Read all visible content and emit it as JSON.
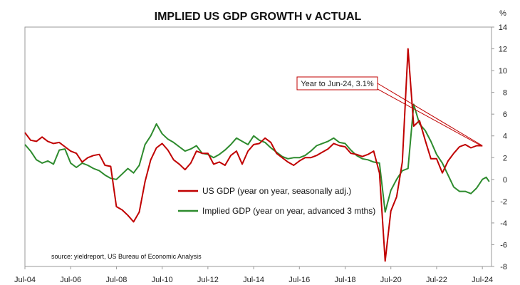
{
  "chart_data": {
    "type": "line",
    "title": "IMPLIED US GDP GROWTH v ACTUAL",
    "ylabel": "%",
    "ylim": [
      -8,
      14
    ],
    "yticks": [
      -8,
      -6,
      -4,
      -2,
      0,
      2,
      4,
      6,
      8,
      10,
      12,
      14
    ],
    "xlim": [
      2004.5,
      2024.9
    ],
    "xticks": [
      {
        "label": "Jul-04",
        "x": 2004.5
      },
      {
        "label": "Jul-06",
        "x": 2006.5
      },
      {
        "label": "Jul-08",
        "x": 2008.5
      },
      {
        "label": "Jul-10",
        "x": 2010.5
      },
      {
        "label": "Jul-12",
        "x": 2012.5
      },
      {
        "label": "Jul-14",
        "x": 2014.5
      },
      {
        "label": "Jul-16",
        "x": 2016.5
      },
      {
        "label": "Jul-18",
        "x": 2018.5
      },
      {
        "label": "Jul-20",
        "x": 2020.5
      },
      {
        "label": "Jul-22",
        "x": 2022.5
      },
      {
        "label": "Jul-24",
        "x": 2024.5
      }
    ],
    "legend_position": "bottom-center",
    "grid": false,
    "series": [
      {
        "name": "US GDP (year on year, seasonally adj.)",
        "color": "#c00000",
        "points": [
          [
            2004.5,
            4.3
          ],
          [
            2004.75,
            3.6
          ],
          [
            2005.0,
            3.5
          ],
          [
            2005.25,
            3.9
          ],
          [
            2005.5,
            3.5
          ],
          [
            2005.75,
            3.3
          ],
          [
            2006.0,
            3.4
          ],
          [
            2006.25,
            3.0
          ],
          [
            2006.5,
            2.6
          ],
          [
            2006.75,
            2.4
          ],
          [
            2007.0,
            1.6
          ],
          [
            2007.25,
            2.0
          ],
          [
            2007.5,
            2.2
          ],
          [
            2007.75,
            2.3
          ],
          [
            2008.0,
            1.3
          ],
          [
            2008.25,
            1.2
          ],
          [
            2008.5,
            -2.5
          ],
          [
            2008.75,
            -2.8
          ],
          [
            2009.0,
            -3.3
          ],
          [
            2009.25,
            -3.9
          ],
          [
            2009.5,
            -3.0
          ],
          [
            2009.75,
            -0.2
          ],
          [
            2010.0,
            1.8
          ],
          [
            2010.25,
            2.9
          ],
          [
            2010.5,
            3.3
          ],
          [
            2010.75,
            2.7
          ],
          [
            2011.0,
            1.8
          ],
          [
            2011.25,
            1.4
          ],
          [
            2011.5,
            0.9
          ],
          [
            2011.75,
            1.5
          ],
          [
            2012.0,
            2.6
          ],
          [
            2012.25,
            2.4
          ],
          [
            2012.5,
            2.4
          ],
          [
            2012.75,
            1.4
          ],
          [
            2013.0,
            1.6
          ],
          [
            2013.25,
            1.3
          ],
          [
            2013.5,
            2.2
          ],
          [
            2013.75,
            2.6
          ],
          [
            2014.0,
            1.4
          ],
          [
            2014.25,
            2.6
          ],
          [
            2014.5,
            3.2
          ],
          [
            2014.75,
            3.3
          ],
          [
            2015.0,
            3.8
          ],
          [
            2015.25,
            3.4
          ],
          [
            2015.5,
            2.4
          ],
          [
            2015.75,
            2.0
          ],
          [
            2016.0,
            1.6
          ],
          [
            2016.25,
            1.3
          ],
          [
            2016.5,
            1.7
          ],
          [
            2016.75,
            2.0
          ],
          [
            2017.0,
            2.0
          ],
          [
            2017.25,
            2.2
          ],
          [
            2017.5,
            2.5
          ],
          [
            2017.75,
            2.8
          ],
          [
            2018.0,
            3.3
          ],
          [
            2018.25,
            3.1
          ],
          [
            2018.5,
            3.0
          ],
          [
            2018.75,
            2.4
          ],
          [
            2019.0,
            2.3
          ],
          [
            2019.25,
            2.1
          ],
          [
            2019.5,
            2.3
          ],
          [
            2019.75,
            2.6
          ],
          [
            2020.0,
            0.6
          ],
          [
            2020.25,
            -7.5
          ],
          [
            2020.5,
            -2.9
          ],
          [
            2020.75,
            -1.6
          ],
          [
            2021.0,
            1.6
          ],
          [
            2021.25,
            12.0
          ],
          [
            2021.5,
            4.9
          ],
          [
            2021.75,
            5.4
          ],
          [
            2022.0,
            3.6
          ],
          [
            2022.25,
            1.9
          ],
          [
            2022.5,
            1.9
          ],
          [
            2022.75,
            0.6
          ],
          [
            2023.0,
            1.7
          ],
          [
            2023.25,
            2.4
          ],
          [
            2023.5,
            3.0
          ],
          [
            2023.75,
            3.2
          ],
          [
            2024.0,
            2.9
          ],
          [
            2024.25,
            3.1
          ],
          [
            2024.5,
            3.1
          ]
        ]
      },
      {
        "name": "Implied GDP (year on year, advanced 3 mths)",
        "color": "#2e8b2e",
        "points": [
          [
            2004.5,
            3.2
          ],
          [
            2004.75,
            2.6
          ],
          [
            2005.0,
            1.8
          ],
          [
            2005.25,
            1.5
          ],
          [
            2005.5,
            1.7
          ],
          [
            2005.75,
            1.4
          ],
          [
            2006.0,
            2.7
          ],
          [
            2006.25,
            2.8
          ],
          [
            2006.5,
            1.5
          ],
          [
            2006.75,
            1.1
          ],
          [
            2007.0,
            1.5
          ],
          [
            2007.25,
            1.3
          ],
          [
            2007.5,
            1.0
          ],
          [
            2007.75,
            0.8
          ],
          [
            2008.0,
            0.4
          ],
          [
            2008.25,
            0.1
          ],
          [
            2008.5,
            0.0
          ],
          [
            2008.75,
            0.5
          ],
          [
            2009.0,
            1.0
          ],
          [
            2009.25,
            0.6
          ],
          [
            2009.5,
            1.3
          ],
          [
            2009.75,
            3.2
          ],
          [
            2010.0,
            4.0
          ],
          [
            2010.25,
            5.1
          ],
          [
            2010.5,
            4.2
          ],
          [
            2010.75,
            3.7
          ],
          [
            2011.0,
            3.4
          ],
          [
            2011.25,
            3.0
          ],
          [
            2011.5,
            2.6
          ],
          [
            2011.75,
            2.8
          ],
          [
            2012.0,
            3.1
          ],
          [
            2012.25,
            2.4
          ],
          [
            2012.5,
            2.3
          ],
          [
            2012.75,
            2.0
          ],
          [
            2013.0,
            2.3
          ],
          [
            2013.25,
            2.7
          ],
          [
            2013.5,
            3.2
          ],
          [
            2013.75,
            3.8
          ],
          [
            2014.0,
            3.5
          ],
          [
            2014.25,
            3.2
          ],
          [
            2014.5,
            4.0
          ],
          [
            2014.75,
            3.6
          ],
          [
            2015.0,
            3.4
          ],
          [
            2015.25,
            2.9
          ],
          [
            2015.5,
            2.5
          ],
          [
            2015.75,
            2.1
          ],
          [
            2016.0,
            1.9
          ],
          [
            2016.25,
            2.0
          ],
          [
            2016.5,
            2.0
          ],
          [
            2016.75,
            2.2
          ],
          [
            2017.0,
            2.6
          ],
          [
            2017.25,
            3.1
          ],
          [
            2017.5,
            3.3
          ],
          [
            2017.75,
            3.5
          ],
          [
            2018.0,
            3.8
          ],
          [
            2018.25,
            3.4
          ],
          [
            2018.5,
            3.3
          ],
          [
            2018.75,
            2.7
          ],
          [
            2019.0,
            2.2
          ],
          [
            2019.25,
            1.9
          ],
          [
            2019.5,
            1.8
          ],
          [
            2019.75,
            1.6
          ],
          [
            2020.0,
            1.5
          ],
          [
            2020.25,
            -3.0
          ],
          [
            2020.5,
            -1.0
          ],
          [
            2020.75,
            0.0
          ],
          [
            2021.0,
            0.8
          ],
          [
            2021.25,
            1.0
          ],
          [
            2021.5,
            6.9
          ],
          [
            2021.75,
            5.1
          ],
          [
            2022.0,
            4.5
          ],
          [
            2022.25,
            3.5
          ],
          [
            2022.5,
            2.3
          ],
          [
            2022.75,
            1.5
          ],
          [
            2023.0,
            0.4
          ],
          [
            2023.25,
            -0.7
          ],
          [
            2023.5,
            -1.1
          ],
          [
            2023.75,
            -1.1
          ],
          [
            2024.0,
            -1.3
          ],
          [
            2024.25,
            -0.8
          ],
          [
            2024.5,
            0.0
          ],
          [
            2024.67,
            0.2
          ],
          [
            2024.8,
            -0.2
          ]
        ]
      }
    ],
    "annotation": {
      "text": "Year to Jun-24, 3.1%",
      "target": [
        2024.5,
        3.1
      ],
      "color": "#c00000"
    },
    "source": "source: yieldreport, US Bureau of Economic Analysis"
  }
}
